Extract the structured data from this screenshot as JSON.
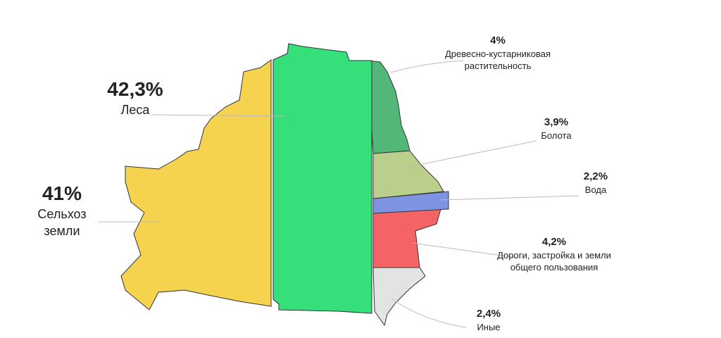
{
  "chart_data": {
    "type": "land-map",
    "categories": [
      "Сельхоз земли",
      "Леса",
      "Древесно-кустарниковая растительность",
      "Болота",
      "Вода",
      "Дороги, застройка и земли общего пользования",
      "Иные"
    ],
    "values": [
      41,
      42.3,
      4,
      3.9,
      2.2,
      4.2,
      2.4
    ],
    "value_labels": [
      "41%",
      "42,3%",
      "4%",
      "3,9%",
      "2,2%",
      "4,2%",
      "2,4%"
    ],
    "colors": [
      "#f5d34f",
      "#35e07a",
      "#54b77a",
      "#b9cf8b",
      "#7f93e3",
      "#f56464",
      "#e3e3e3"
    ]
  }
}
